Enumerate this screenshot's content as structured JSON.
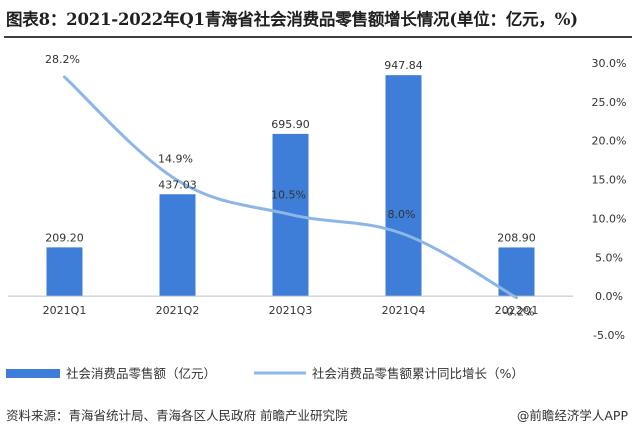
{
  "title": "图表8：2021-2022年Q1青海省社会消费品零售额增长情况(单位：亿元，%)",
  "source": "资料来源：青海省统计局、青海各区人民政府 前瞻产业研究院",
  "brand": "@前瞻经济学人APP",
  "colors": {
    "bar": "#3e7ed8",
    "line": "#8cb6e6",
    "title_rule": "#3f3f3f"
  },
  "chart_data": {
    "type": "bar",
    "categories": [
      "2021Q1",
      "2021Q2",
      "2021Q3",
      "2021Q4",
      "2022Q1"
    ],
    "series": [
      {
        "name": "社会消费品零售额（亿元）",
        "type": "bar",
        "axis": "left",
        "values": [
          209.2,
          437.03,
          695.9,
          947.84,
          208.9
        ],
        "labels": [
          "209.20",
          "437.03",
          "695.90",
          "947.84",
          "208.90"
        ]
      },
      {
        "name": "社会消费品零售额累计同比增长（%）",
        "type": "line",
        "axis": "right",
        "values": [
          28.2,
          14.9,
          10.5,
          8.0,
          -0.2
        ],
        "labels": [
          "28.2%",
          "14.9%",
          "10.5%",
          "8.0%",
          "-0.2%"
        ]
      }
    ],
    "y_left": {
      "min": -166.67,
      "max": 1000,
      "ticks": []
    },
    "y_right": {
      "min": -5,
      "max": 30,
      "ticks": [
        30,
        25,
        20,
        15,
        10,
        5,
        0,
        -5
      ],
      "tick_labels": [
        "30.0%",
        "25.0%",
        "20.0%",
        "15.0%",
        "10.0%",
        "5.0%",
        "0.0%",
        "-5.0%"
      ]
    },
    "grid": false,
    "legend": "bottom-left"
  }
}
